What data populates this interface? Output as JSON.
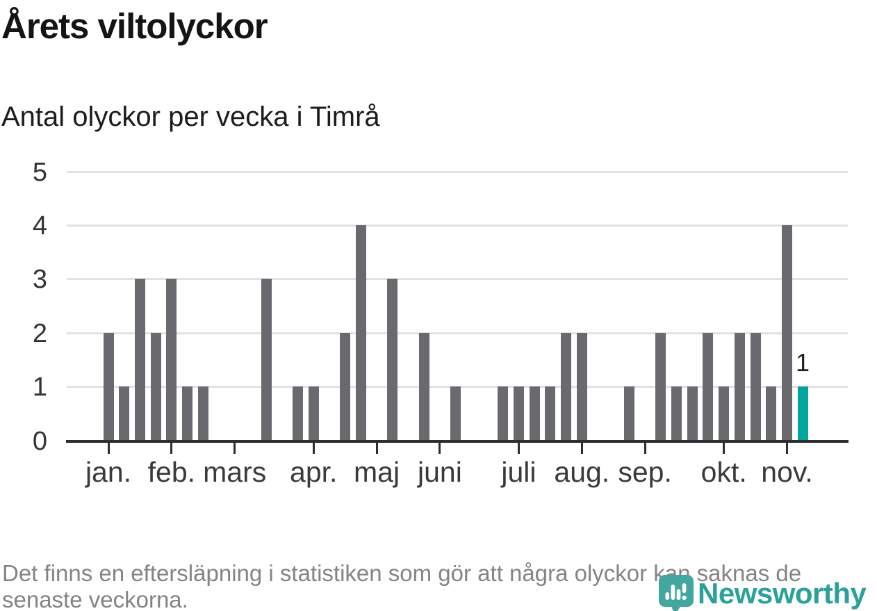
{
  "title": "Årets viltolyckor",
  "subtitle": "Antal olyckor per vecka i Timrå",
  "footer": {
    "lines": [
      "Det finns en eftersläpning i statistiken som gör att några olyckor kan saknas de",
      "senaste veckorna."
    ]
  },
  "logo": {
    "brand": "Newsworthy",
    "icon": "newsworthy-pin-icon"
  },
  "colors": {
    "bar": "#69696e",
    "highlight": "#00a59c",
    "axis": "#2d2d2d",
    "gridline": "#e2e2e2",
    "brand_teal": "#2ca19a"
  },
  "chart_data": {
    "type": "bar",
    "title": "Årets viltolyckor",
    "subtitle": "Antal olyckor per vecka i Timrå",
    "x_unit": "vecka",
    "values": [
      2,
      1,
      3,
      2,
      3,
      1,
      1,
      0,
      0,
      0,
      3,
      0,
      1,
      1,
      0,
      2,
      4,
      0,
      3,
      0,
      2,
      0,
      1,
      0,
      0,
      1,
      1,
      1,
      1,
      2,
      2,
      0,
      0,
      1,
      0,
      2,
      1,
      1,
      2,
      1,
      2,
      2,
      1,
      4,
      1
    ],
    "highlight_index": 44,
    "last_value_label": "1",
    "month_ticks": [
      {
        "label": "jan.",
        "index": 0
      },
      {
        "label": "feb.",
        "index": 4
      },
      {
        "label": "mars",
        "index": 8
      },
      {
        "label": "apr.",
        "index": 13
      },
      {
        "label": "maj",
        "index": 17
      },
      {
        "label": "juni",
        "index": 21
      },
      {
        "label": "juli",
        "index": 26
      },
      {
        "label": "aug.",
        "index": 30
      },
      {
        "label": "sep.",
        "index": 34
      },
      {
        "label": "okt.",
        "index": 39
      },
      {
        "label": "nov.",
        "index": 43
      }
    ],
    "ylim": [
      0,
      5
    ],
    "yticks": [
      0,
      1,
      2,
      3,
      4,
      5
    ],
    "grid": true,
    "legend": "none"
  }
}
